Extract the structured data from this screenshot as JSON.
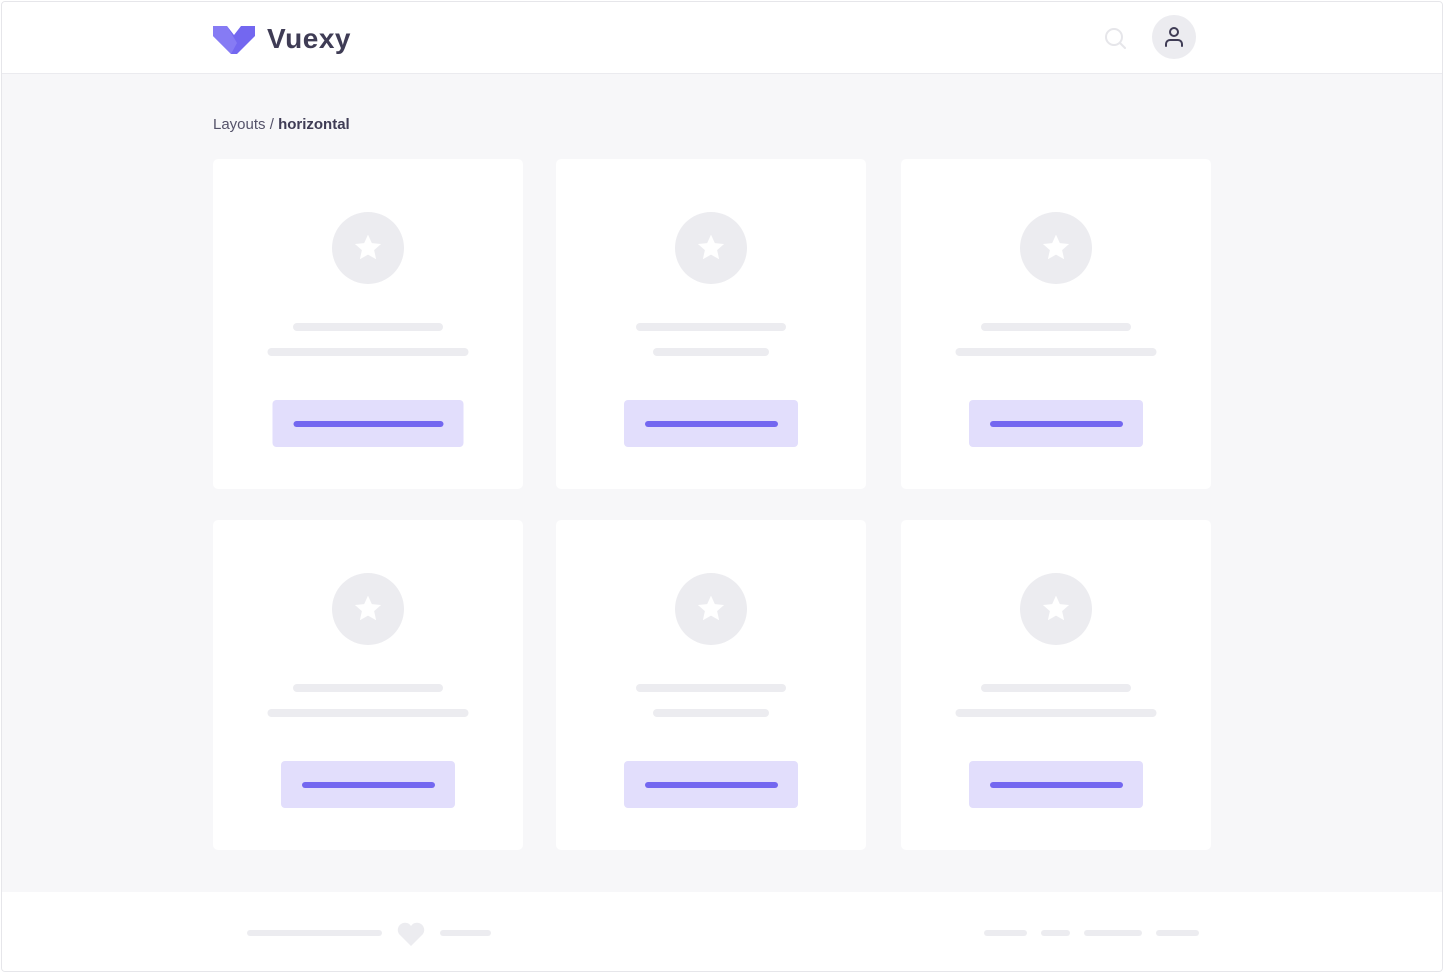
{
  "header": {
    "brand": "Vuexy",
    "logo_icon": "vuexy-logo",
    "search_icon": "search-icon",
    "avatar_icon": "user-icon"
  },
  "breadcrumb": {
    "parent": "Layouts",
    "separator": " / ",
    "current": "horizontal"
  },
  "cards": [
    {
      "icon": "star-icon"
    },
    {
      "icon": "star-icon"
    },
    {
      "icon": "star-icon"
    },
    {
      "icon": "star-icon"
    },
    {
      "icon": "star-icon"
    },
    {
      "icon": "star-icon"
    }
  ],
  "footer": {
    "icon": "heart-icon"
  },
  "colors": {
    "primary": "#7367f0",
    "primary_light": "#e2defc",
    "background": "#f7f7f9",
    "skeleton": "#ececf0",
    "text": "#3f3c55"
  }
}
